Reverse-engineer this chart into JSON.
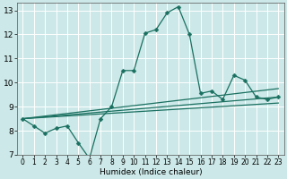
{
  "xlabel": "Humidex (Indice chaleur)",
  "bg_color": "#cce8e8",
  "grid_color": "#ffffff",
  "line_color": "#1a7060",
  "xlim": [
    -0.5,
    23.5
  ],
  "ylim": [
    7,
    13.3
  ],
  "yticks": [
    7,
    8,
    9,
    10,
    11,
    12,
    13
  ],
  "xticks": [
    0,
    1,
    2,
    3,
    4,
    5,
    6,
    7,
    8,
    9,
    10,
    11,
    12,
    13,
    14,
    15,
    16,
    17,
    18,
    19,
    20,
    21,
    22,
    23
  ],
  "main_series": {
    "x": [
      0,
      1,
      2,
      3,
      4,
      5,
      6,
      7,
      8,
      9,
      10,
      11,
      12,
      13,
      14,
      15,
      16,
      17,
      18,
      19,
      20,
      21,
      22,
      23
    ],
    "y": [
      8.5,
      8.2,
      7.9,
      8.1,
      8.2,
      7.5,
      6.85,
      8.5,
      9.0,
      10.5,
      10.5,
      12.05,
      12.2,
      12.9,
      13.15,
      12.0,
      9.55,
      9.65,
      9.3,
      10.3,
      10.1,
      9.4,
      9.3,
      9.4
    ]
  },
  "linear_lines": [
    {
      "x0": 0,
      "y0": 8.5,
      "x1": 23,
      "y1": 9.15
    },
    {
      "x0": 0,
      "y0": 8.5,
      "x1": 23,
      "y1": 9.4
    },
    {
      "x0": 0,
      "y0": 8.5,
      "x1": 23,
      "y1": 9.75
    }
  ],
  "xlabel_fontsize": 6.5,
  "tick_fontsize": 5.5,
  "ytick_fontsize": 6.5,
  "markersize": 2.5,
  "linewidth": 0.9
}
